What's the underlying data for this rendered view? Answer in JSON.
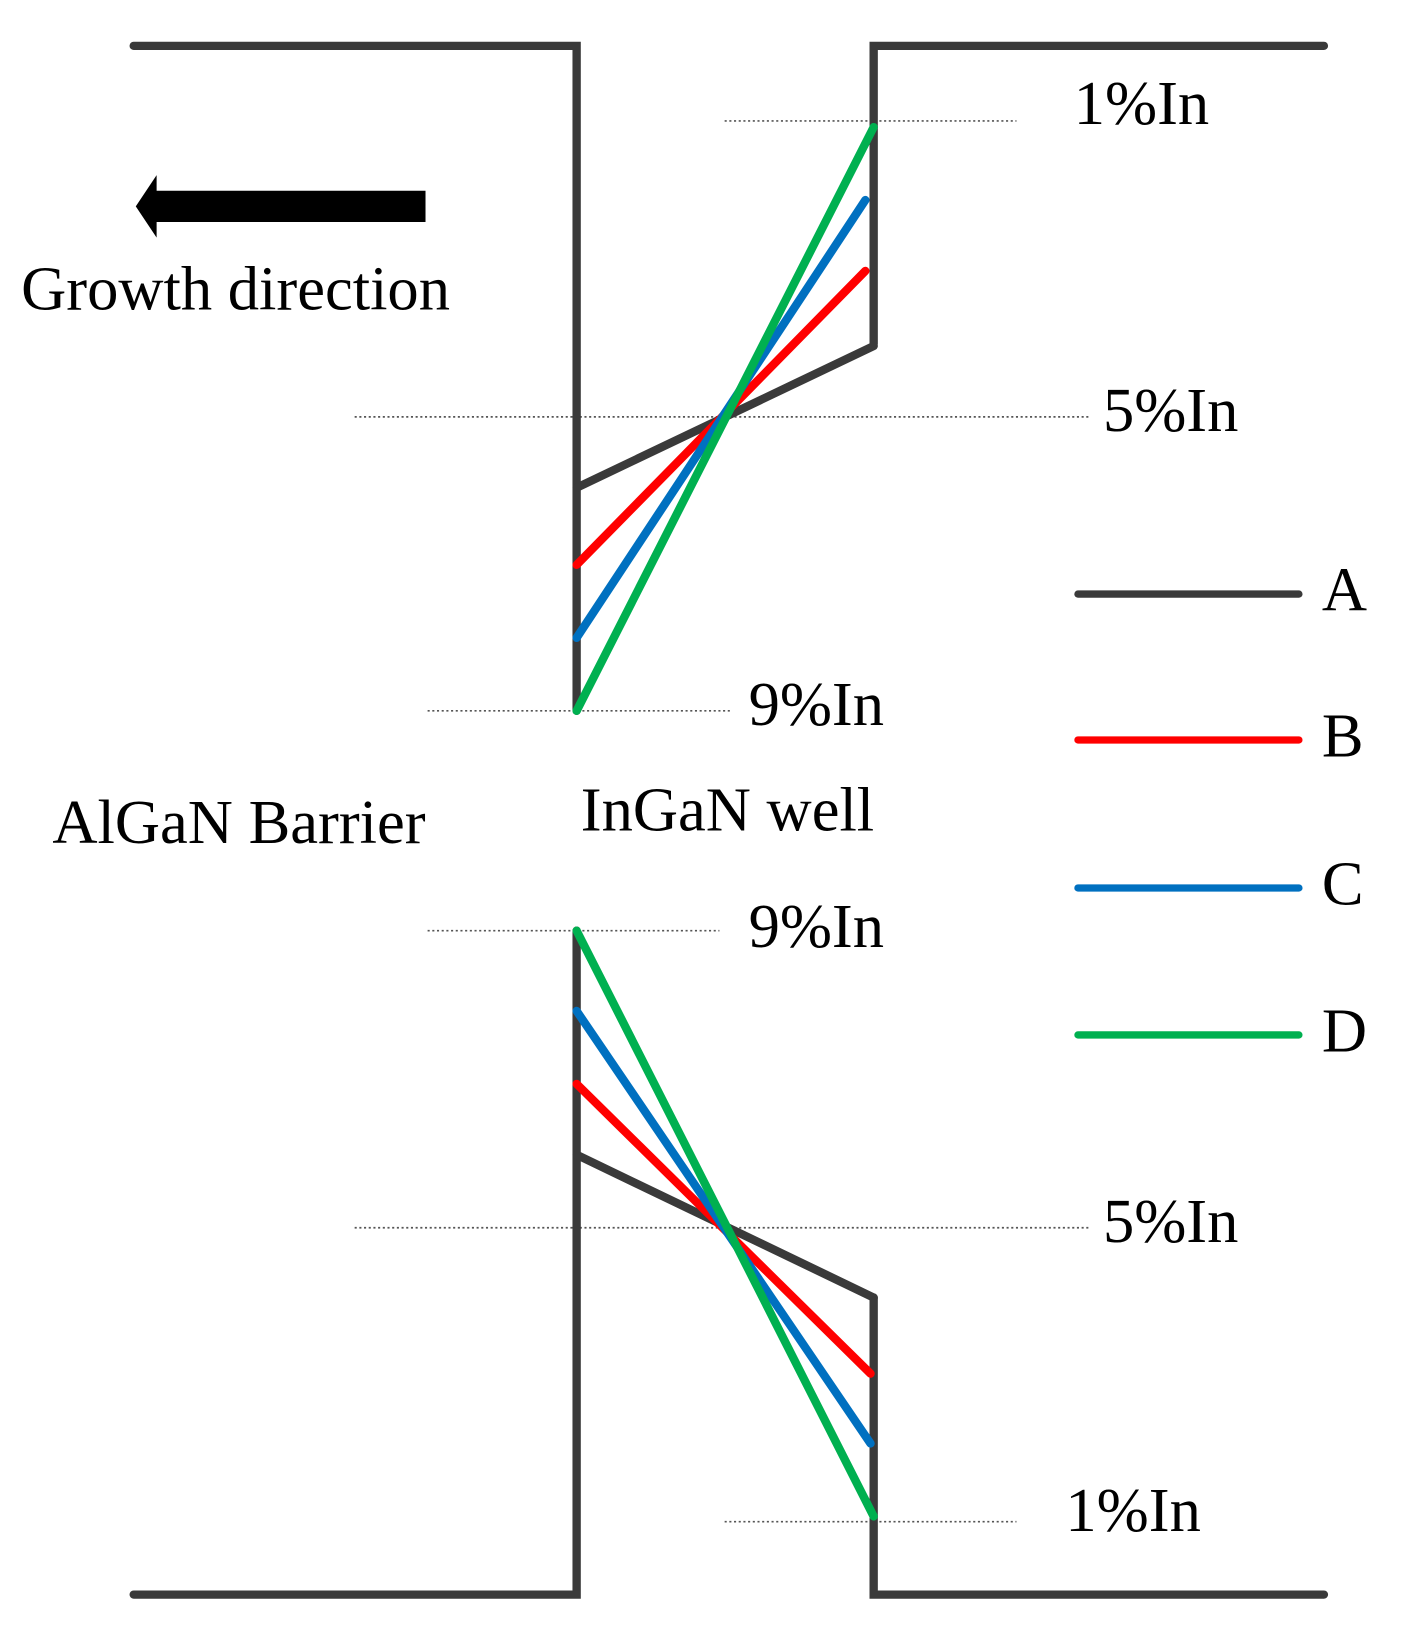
{
  "growth_label": "Growth direction",
  "barrier_label": "AlGaN Barrier",
  "well_label": "InGaN well",
  "conduction_levels": [
    "1%In",
    "5%In",
    "9%In"
  ],
  "valence_levels": [
    "9%In",
    "5%In",
    "1%In"
  ],
  "legend": [
    {
      "label": "A",
      "color": "#3a3a3a"
    },
    {
      "label": "B",
      "color": "#ff0000"
    },
    {
      "label": "C",
      "color": "#0070c0"
    },
    {
      "label": "D",
      "color": "#00b050"
    }
  ]
}
